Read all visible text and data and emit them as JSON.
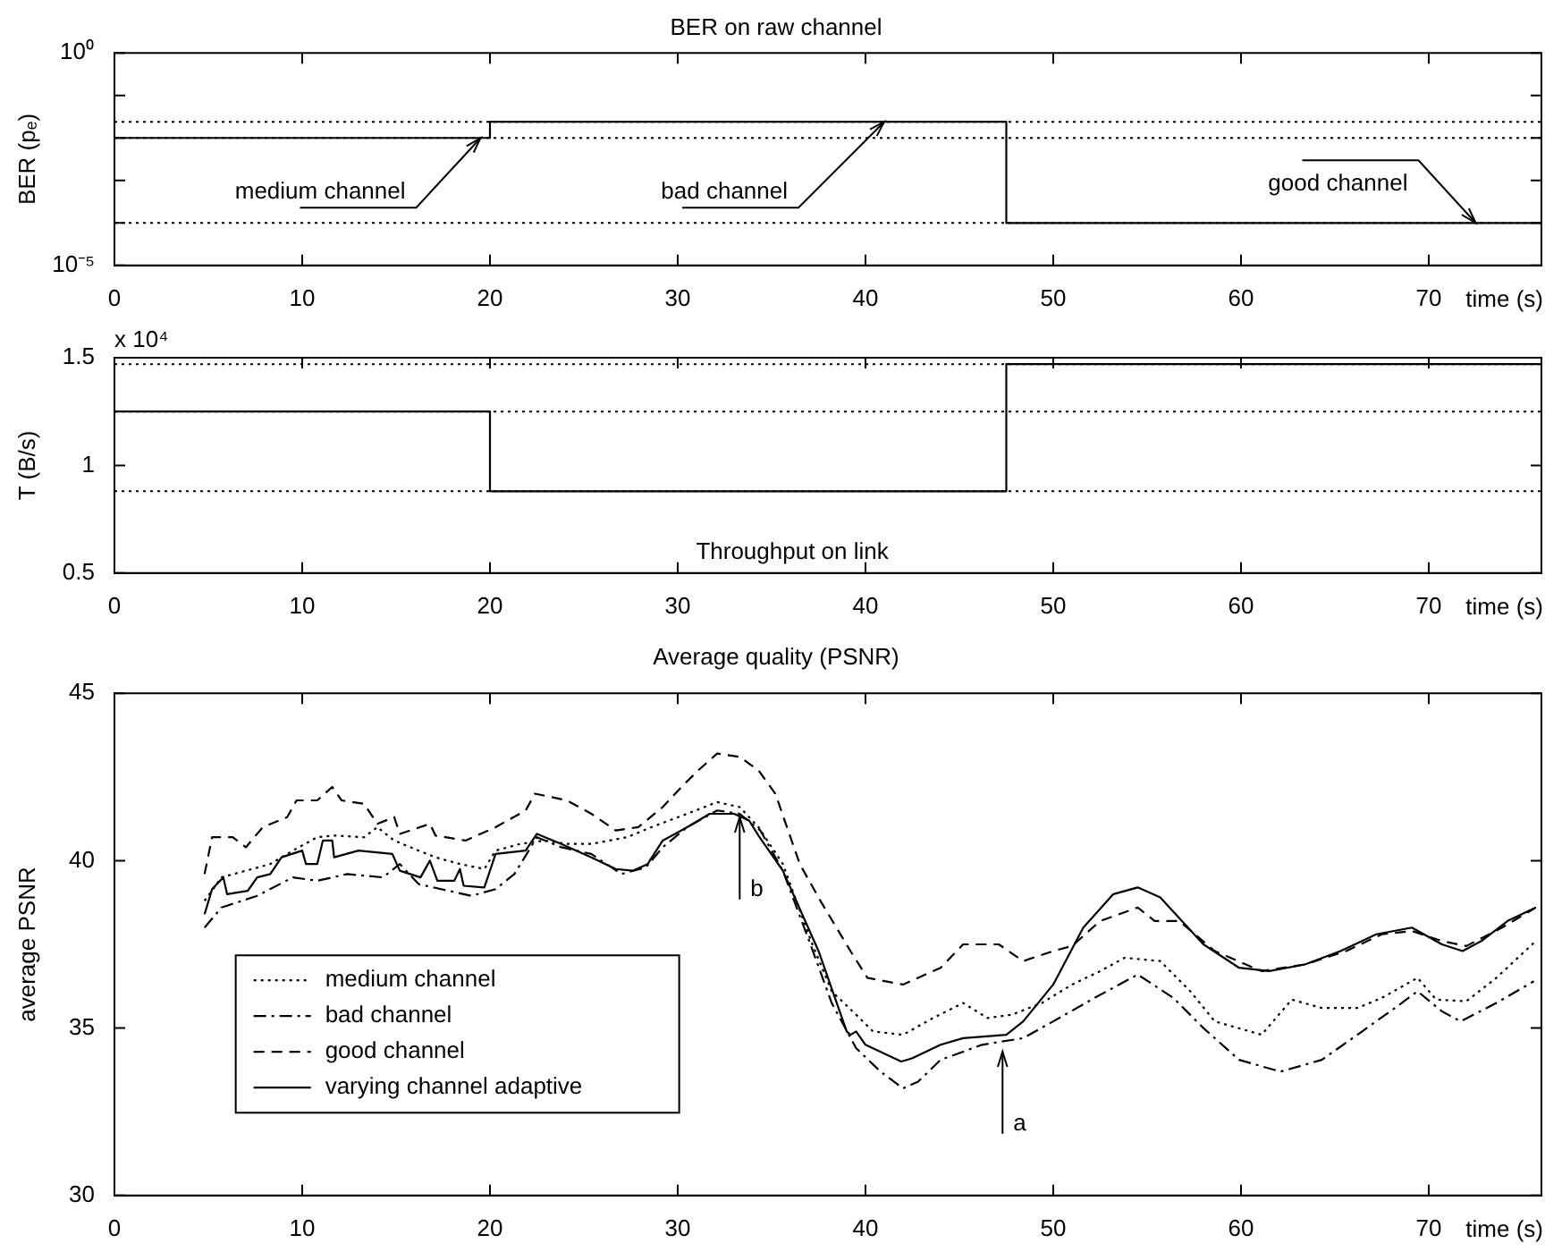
{
  "chart_data": [
    {
      "type": "step",
      "title": "BER on raw channel",
      "ylabel": "BER (pₑ)",
      "xlabel": "time (s)",
      "log": "y",
      "x": [
        0,
        20,
        47.5,
        76
      ],
      "values": [
        0.01,
        0.024,
        0.0001,
        0.0001
      ],
      "color": "#000000",
      "xlim": [
        0,
        76
      ],
      "xticks": [
        0,
        10,
        20,
        30,
        40,
        50,
        60,
        70
      ],
      "ylim": [
        1e-05,
        1
      ],
      "yticks": [
        {
          "value": 1,
          "label": "10⁰"
        },
        {
          "value": 0.1,
          "label": null
        },
        {
          "value": 0.01,
          "label": null
        },
        {
          "value": 0.001,
          "label": null
        },
        {
          "value": 0.0001,
          "label": null
        },
        {
          "value": 1e-05,
          "label": "10⁻⁵"
        }
      ],
      "ref_lines": [
        {
          "axis": "y",
          "value": 0.024,
          "color": "#000000",
          "line_style": "dotted"
        },
        {
          "axis": "y",
          "value": 0.01,
          "color": "#000000",
          "line_style": "dotted"
        },
        {
          "axis": "y",
          "value": 0.0001,
          "color": "#000000",
          "line_style": "dotted"
        }
      ],
      "annotations": [
        {
          "text": "medium channel",
          "x": 19.5,
          "y": 0.01
        },
        {
          "text": "bad channel",
          "x": 41,
          "y": 0.024
        },
        {
          "text": "good channel",
          "x": 72.5,
          "y": 0.0001
        }
      ]
    },
    {
      "type": "step",
      "ylabel": "T (B/s)",
      "xlabel": "time (s)",
      "x": [
        0,
        20,
        47.5,
        76
      ],
      "values": [
        1.25,
        0.88,
        1.47,
        1.47
      ],
      "color": "#000000",
      "xlim": [
        0,
        76
      ],
      "xticks": [
        0,
        10,
        20,
        30,
        40,
        50,
        60,
        70
      ],
      "ylim": [
        0.5,
        1.5
      ],
      "yticks": [
        0.5,
        1,
        1.5
      ],
      "ref_lines": [
        {
          "axis": "y",
          "value": 1.47,
          "color": "#000000",
          "line_style": "dotted"
        },
        {
          "axis": "y",
          "value": 1.25,
          "color": "#000000",
          "line_style": "dotted"
        },
        {
          "axis": "y",
          "value": 0.88,
          "color": "#000000",
          "line_style": "dotted"
        }
      ],
      "annotations": [
        "x 10⁴",
        "Throughput on link"
      ]
    },
    {
      "type": "line",
      "title": "Average quality (PSNR)",
      "ylabel": "average PSNR",
      "xlabel": "time (s)",
      "xlim": [
        0,
        76
      ],
      "xticks": [
        0,
        10,
        20,
        30,
        40,
        50,
        60,
        70
      ],
      "ylim": [
        30,
        45
      ],
      "yticks": [
        30,
        35,
        40,
        45
      ],
      "legend": "bottom left",
      "series": [
        {
          "name": "medium channel",
          "color": "#000000",
          "line_style": "dotted",
          "x": [
            4.8,
            5.7,
            7.0,
            8.3,
            9.5,
            10.8,
            11.7,
            13.3,
            14.0,
            14.9,
            16.2,
            17.1,
            18.4,
            19.7,
            20.3,
            21.6,
            22.9,
            24.1,
            25.4,
            27.3,
            28.6,
            30.5,
            32.1,
            33.3,
            34.3,
            35.6,
            37.1,
            38.2,
            39.5,
            40.4,
            42.0,
            43.6,
            45.2,
            46.5,
            47.8,
            49.4,
            51.0,
            52.5,
            53.8,
            55.7,
            57.3,
            58.6,
            61.1,
            62.7,
            64.3,
            66.2,
            67.5,
            69.4,
            70.4,
            72.0,
            73.6,
            75.7
          ],
          "values": [
            38.8,
            39.5,
            39.7,
            39.9,
            40.3,
            40.7,
            40.75,
            40.7,
            41.0,
            40.6,
            40.3,
            40.1,
            39.9,
            39.75,
            40.3,
            40.5,
            40.6,
            40.5,
            40.5,
            40.7,
            41.0,
            41.4,
            41.75,
            41.6,
            41.0,
            39.9,
            37.6,
            36.1,
            35.4,
            34.9,
            34.8,
            35.3,
            35.75,
            35.3,
            35.4,
            35.75,
            36.3,
            36.7,
            37.1,
            37.0,
            36.1,
            35.2,
            34.8,
            35.85,
            35.6,
            35.6,
            35.9,
            36.5,
            35.85,
            35.8,
            36.5,
            37.6
          ]
        },
        {
          "name": "bad channel",
          "color": "#000000",
          "line_style": "dashdot",
          "x": [
            4.8,
            5.7,
            7.6,
            9.5,
            10.8,
            12.4,
            14.3,
            15.2,
            16.2,
            17.8,
            19.0,
            20.3,
            21.3,
            22.5,
            23.8,
            25.4,
            27.0,
            28.3,
            29.2,
            30.5,
            32.1,
            33.3,
            34.4,
            35.6,
            37.1,
            38.2,
            39.5,
            40.8,
            42.0,
            42.8,
            44.0,
            46.2,
            48.4,
            50.0,
            52.2,
            54.5,
            56.4,
            58.0,
            59.9,
            62.1,
            64.3,
            66.2,
            68.2,
            69.4,
            70.7,
            71.7,
            73.6,
            75.6
          ],
          "values": [
            38.0,
            38.6,
            38.95,
            39.5,
            39.4,
            39.6,
            39.5,
            39.9,
            39.3,
            39.1,
            38.95,
            39.15,
            39.6,
            40.7,
            40.4,
            40.2,
            39.6,
            39.8,
            40.4,
            41.0,
            41.5,
            41.4,
            40.9,
            39.7,
            37.45,
            35.75,
            34.4,
            33.7,
            33.2,
            33.4,
            34.05,
            34.5,
            34.7,
            35.2,
            35.9,
            36.6,
            35.9,
            35.0,
            34.05,
            33.7,
            34.05,
            34.8,
            35.6,
            36.1,
            35.5,
            35.2,
            35.75,
            36.4
          ]
        },
        {
          "name": "good channel",
          "color": "#000000",
          "line_style": "dashed",
          "x": [
            4.8,
            5.2,
            6.3,
            7.0,
            7.9,
            9.2,
            9.7,
            10.8,
            11.6,
            12.1,
            13.3,
            14.0,
            14.9,
            15.2,
            16.8,
            17.1,
            18.7,
            20.3,
            21.9,
            22.4,
            24.1,
            25.4,
            26.7,
            27.9,
            29.2,
            30.2,
            31.1,
            32.1,
            33.3,
            34.3,
            35.2,
            36.5,
            37.6,
            39.2,
            40.1,
            42.0,
            44.0,
            45.2,
            47.1,
            48.4,
            50.0,
            51.0,
            52.5,
            54.5,
            55.4,
            56.7,
            58.6,
            61.1,
            63.4,
            65.6,
            67.5,
            69.1,
            70.7,
            72.0,
            73.9,
            75.7
          ],
          "values": [
            39.6,
            40.7,
            40.7,
            40.4,
            41.0,
            41.3,
            41.8,
            41.8,
            42.2,
            41.8,
            41.7,
            41.1,
            41.3,
            40.8,
            41.1,
            40.75,
            40.6,
            41.0,
            41.5,
            42.0,
            41.8,
            41.4,
            40.9,
            41.0,
            41.6,
            42.2,
            42.7,
            43.2,
            43.1,
            42.7,
            42.0,
            39.9,
            38.8,
            37.3,
            36.5,
            36.3,
            36.8,
            37.5,
            37.5,
            37.0,
            37.3,
            37.45,
            38.2,
            38.6,
            38.2,
            38.2,
            37.3,
            36.7,
            36.9,
            37.3,
            37.8,
            37.9,
            37.6,
            37.45,
            38.0,
            38.6
          ]
        },
        {
          "name": "varying channel adaptive",
          "color": "#000000",
          "line_style": "solid",
          "x": [
            4.8,
            5.2,
            5.8,
            6.0,
            7.1,
            7.6,
            8.3,
            8.9,
            10.0,
            10.2,
            10.8,
            11.1,
            11.6,
            11.7,
            13.0,
            14.8,
            15.2,
            16.3,
            16.8,
            17.2,
            18.1,
            18.4,
            18.6,
            19.7,
            20.3,
            21.9,
            22.5,
            23.8,
            25.4,
            26.7,
            27.6,
            28.4,
            29.2,
            30.5,
            31.7,
            33.0,
            33.8,
            34.3,
            35.6,
            37.5,
            39.0,
            39.2,
            39.5,
            40.0,
            41.9,
            42.5,
            44.0,
            45.2,
            47.5,
            48.4,
            50.0,
            51.6,
            53.2,
            54.5,
            55.7,
            58.0,
            59.9,
            61.5,
            63.4,
            65.3,
            67.2,
            69.1,
            70.7,
            71.8,
            72.8,
            74.2,
            75.7
          ],
          "values": [
            38.4,
            39.15,
            39.5,
            39.0,
            39.1,
            39.5,
            39.6,
            40.1,
            40.3,
            39.9,
            39.9,
            40.6,
            40.6,
            40.1,
            40.3,
            40.2,
            39.7,
            39.5,
            40.0,
            39.4,
            39.4,
            39.75,
            39.25,
            39.2,
            40.2,
            40.3,
            40.8,
            40.5,
            40.1,
            39.75,
            39.7,
            39.9,
            40.6,
            41.0,
            41.4,
            41.4,
            41.2,
            40.75,
            39.7,
            37.3,
            34.9,
            34.8,
            34.9,
            34.5,
            34.0,
            34.1,
            34.5,
            34.7,
            34.8,
            35.2,
            36.3,
            38.0,
            39.0,
            39.2,
            38.9,
            37.5,
            36.8,
            36.7,
            36.9,
            37.3,
            37.8,
            38.0,
            37.5,
            37.3,
            37.6,
            38.2,
            38.6
          ]
        }
      ],
      "annotations": [
        {
          "text": "b",
          "x": 33.3,
          "y": 41.3
        },
        {
          "text": "a",
          "x": 47.3,
          "y": 34.3
        }
      ]
    }
  ]
}
